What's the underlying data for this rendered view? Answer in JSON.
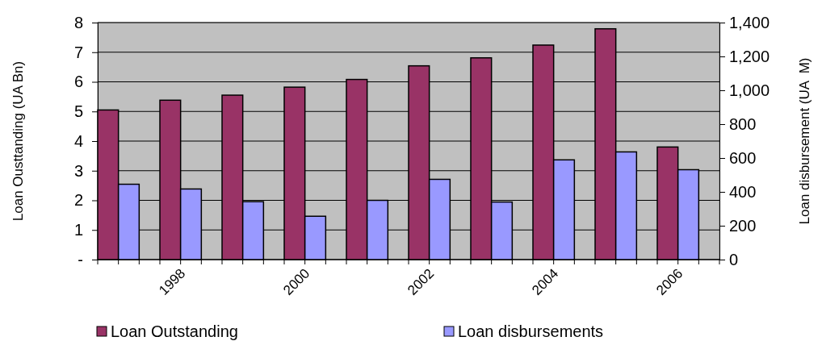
{
  "chart_data": {
    "type": "bar",
    "ylabel": "Loan Ousttanding (UA Bn)",
    "y2label": "Loan disbursement (UA  M)",
    "categories": [
      null,
      "1998",
      null,
      "2000",
      null,
      "2002",
      null,
      "2004",
      null,
      "2006"
    ],
    "series": [
      {
        "name": "Loan Outstanding",
        "color": "#993366",
        "values": [
          5.05,
          5.38,
          5.55,
          5.82,
          6.08,
          6.54,
          6.81,
          7.24,
          7.79,
          3.8
        ]
      },
      {
        "name": "Loan disbursements",
        "color": "#9999ff",
        "axis": "y2",
        "values": [
          445,
          417,
          342,
          256,
          350,
          474,
          340,
          589,
          636,
          531
        ]
      }
    ],
    "ylim": [
      0,
      8
    ],
    "yticks": [
      {
        "value": 0,
        "label": "-"
      },
      1,
      2,
      3,
      4,
      5,
      6,
      7,
      8
    ],
    "y2lim": [
      0,
      1400
    ],
    "y2ticks": [
      0,
      200,
      400,
      600,
      800,
      {
        "value": 1000,
        "label": "1,000"
      },
      {
        "value": 1200,
        "label": "1,200"
      },
      {
        "value": 1400,
        "label": "1,400"
      }
    ],
    "grid": "y",
    "legend": "bottom"
  }
}
